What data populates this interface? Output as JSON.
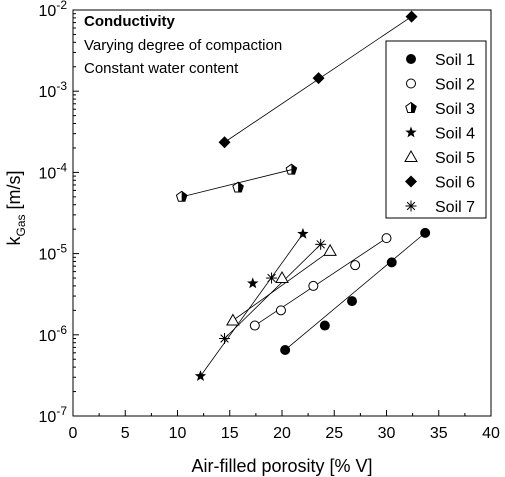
{
  "chart_data": {
    "type": "scatter",
    "x_scale": "linear",
    "y_scale": "log",
    "xlabel": "Air-filled porosity [% V]",
    "ylabel_main": "k",
    "ylabel_sub": "Gas",
    "ylabel_unit": " [m/s]",
    "xlim": [
      0,
      40
    ],
    "ylim": [
      1e-07,
      0.01
    ],
    "x_ticks": [
      0,
      5,
      10,
      15,
      20,
      25,
      30,
      35,
      40
    ],
    "y_ticks": [
      {
        "value": 1e-07,
        "base": "10",
        "exp": "-7"
      },
      {
        "value": 1e-06,
        "base": "10",
        "exp": "-6"
      },
      {
        "value": 1e-05,
        "base": "10",
        "exp": "-5"
      },
      {
        "value": 0.0001,
        "base": "10",
        "exp": "-4"
      },
      {
        "value": 0.001,
        "base": "10",
        "exp": "-3"
      },
      {
        "value": 0.01,
        "base": "10",
        "exp": "-2"
      }
    ],
    "annotations": [
      "Conductivity",
      "Varying degree of compaction",
      "Constant water content"
    ],
    "grid": false,
    "legend_position": "top-right",
    "series": [
      {
        "name": "Soil 1",
        "marker": "circle-filled",
        "x": [
          20.3,
          24.1,
          26.7,
          30.5,
          33.7
        ],
        "y": [
          6.5e-07,
          1.3e-06,
          2.6e-06,
          7.8e-06,
          1.8e-05
        ]
      },
      {
        "name": "Soil 2",
        "marker": "circle-open",
        "x": [
          17.4,
          19.9,
          23.0,
          27.0,
          30.0
        ],
        "y": [
          1.3e-06,
          2e-06,
          4e-06,
          7.2e-06,
          1.55e-05
        ]
      },
      {
        "name": "Soil 3",
        "marker": "pentagon-half",
        "x": [
          10.4,
          15.8,
          20.9
        ],
        "y": [
          5e-05,
          6.5e-05,
          0.000108
        ]
      },
      {
        "name": "Soil 4",
        "marker": "star",
        "x": [
          12.2,
          17.2,
          22.0
        ],
        "y": [
          3.1e-07,
          4.3e-06,
          1.75e-05
        ]
      },
      {
        "name": "Soil 5",
        "marker": "triangle-open",
        "x": [
          15.3,
          20.0,
          24.6
        ],
        "y": [
          1.5e-06,
          5e-06,
          1.08e-05
        ]
      },
      {
        "name": "Soil 6",
        "marker": "diamond-filled",
        "x": [
          14.5,
          23.5,
          32.4
        ],
        "y": [
          0.000235,
          0.00145,
          0.0083
        ]
      },
      {
        "name": "Soil 7",
        "marker": "asterisk",
        "x": [
          14.5,
          19.0,
          23.7
        ],
        "y": [
          9e-07,
          5e-06,
          1.3e-05
        ]
      }
    ]
  }
}
